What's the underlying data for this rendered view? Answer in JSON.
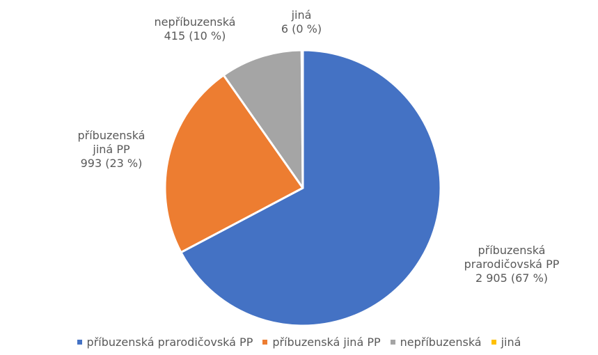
{
  "chart_data": {
    "type": "pie",
    "categories": [
      "příbuzenská prarodičovská PP",
      "příbuzenská jiná PP",
      "nepříbuzenská",
      "jiná"
    ],
    "values": [
      2905,
      993,
      415,
      6
    ],
    "value_labels": [
      "2 905 (67 %)",
      "993 (23 %)",
      "415 (10 %)",
      "6 (0 %)"
    ],
    "colors": [
      "#4472c4",
      "#ed7d31",
      "#a5a5a5",
      "#ffc000"
    ],
    "legend": "bottom"
  }
}
